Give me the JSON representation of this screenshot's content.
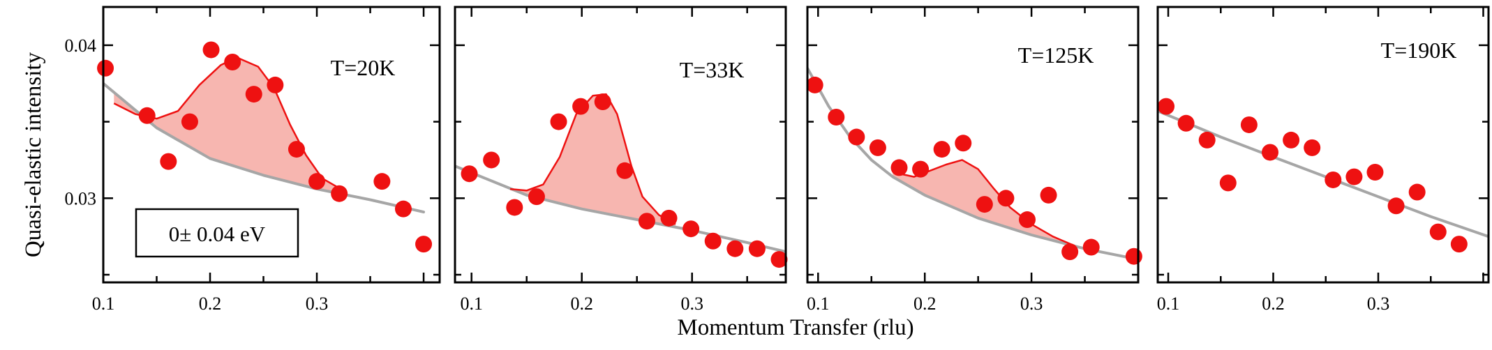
{
  "figure": {
    "ylabel": "Quasi-elastic intensity",
    "xlabel": "Momentum Transfer (rlu)",
    "energy_window": "0± 0.04 eV"
  },
  "colors": {
    "points": "#ee1111",
    "peak_line": "#ee1111",
    "peak_fill": "#f7b6b0",
    "background": "#a6a6a6",
    "frame": "#000000"
  },
  "chart_data": [
    {
      "type": "scatter",
      "panel_label": "T=20K",
      "xlim": [
        0.1,
        0.415
      ],
      "ylim": [
        0.0245,
        0.0425
      ],
      "xticks": [
        0.1,
        0.2,
        0.3
      ],
      "xtick_labels": [
        "0.1",
        "0.2",
        "0.3"
      ],
      "yticks": [
        0.03,
        0.04
      ],
      "ytick_labels": [
        "0.03",
        "0.04"
      ],
      "points": [
        [
          0.102,
          0.0385
        ],
        [
          0.141,
          0.0354
        ],
        [
          0.161,
          0.0324
        ],
        [
          0.181,
          0.035
        ],
        [
          0.201,
          0.0397
        ],
        [
          0.221,
          0.0389
        ],
        [
          0.241,
          0.0368
        ],
        [
          0.261,
          0.0374
        ],
        [
          0.281,
          0.0332
        ],
        [
          0.3,
          0.0311
        ],
        [
          0.321,
          0.0303
        ],
        [
          0.361,
          0.0311
        ],
        [
          0.381,
          0.0293
        ],
        [
          0.4,
          0.027
        ]
      ],
      "background_curve": [
        [
          0.1,
          0.0375
        ],
        [
          0.15,
          0.0346
        ],
        [
          0.2,
          0.0326
        ],
        [
          0.25,
          0.0315
        ],
        [
          0.3,
          0.0306
        ],
        [
          0.35,
          0.0299
        ],
        [
          0.4,
          0.0291
        ]
      ],
      "peak_curve": [
        [
          0.11,
          0.0362
        ],
        [
          0.13,
          0.0355
        ],
        [
          0.15,
          0.0352
        ],
        [
          0.17,
          0.0357
        ],
        [
          0.19,
          0.0374
        ],
        [
          0.21,
          0.0387
        ],
        [
          0.225,
          0.0392
        ],
        [
          0.245,
          0.0386
        ],
        [
          0.26,
          0.0372
        ],
        [
          0.275,
          0.0348
        ],
        [
          0.29,
          0.0328
        ],
        [
          0.305,
          0.0313
        ],
        [
          0.32,
          0.0307
        ]
      ]
    },
    {
      "type": "scatter",
      "panel_label": "T=33K",
      "xlim": [
        0.085,
        0.385
      ],
      "ylim": [
        0.0245,
        0.0425
      ],
      "xticks": [
        0.1,
        0.2,
        0.3
      ],
      "xtick_labels": [
        "0.1",
        "0.2",
        "0.3"
      ],
      "yticks": [
        0.03,
        0.04
      ],
      "ytick_labels": [],
      "points": [
        [
          0.098,
          0.0316
        ],
        [
          0.118,
          0.0325
        ],
        [
          0.139,
          0.0294
        ],
        [
          0.159,
          0.0301
        ],
        [
          0.179,
          0.035
        ],
        [
          0.199,
          0.036
        ],
        [
          0.219,
          0.0363
        ],
        [
          0.239,
          0.0318
        ],
        [
          0.259,
          0.0285
        ],
        [
          0.279,
          0.0287
        ],
        [
          0.299,
          0.028
        ],
        [
          0.319,
          0.0272
        ],
        [
          0.339,
          0.0267
        ],
        [
          0.359,
          0.0267
        ],
        [
          0.379,
          0.026
        ]
      ],
      "background_curve": [
        [
          0.085,
          0.0321
        ],
        [
          0.15,
          0.0302
        ],
        [
          0.2,
          0.0293
        ],
        [
          0.25,
          0.0286
        ],
        [
          0.3,
          0.0279
        ],
        [
          0.35,
          0.0271
        ],
        [
          0.385,
          0.0265
        ]
      ],
      "peak_curve": [
        [
          0.135,
          0.0306
        ],
        [
          0.15,
          0.0305
        ],
        [
          0.165,
          0.0309
        ],
        [
          0.18,
          0.0327
        ],
        [
          0.195,
          0.0355
        ],
        [
          0.21,
          0.0367
        ],
        [
          0.222,
          0.0368
        ],
        [
          0.232,
          0.0355
        ],
        [
          0.245,
          0.0321
        ],
        [
          0.255,
          0.0301
        ],
        [
          0.27,
          0.0289
        ],
        [
          0.285,
          0.0283
        ]
      ]
    },
    {
      "type": "scatter",
      "panel_label": "T=125K",
      "xlim": [
        0.09,
        0.4
      ],
      "ylim": [
        0.0245,
        0.0425
      ],
      "xticks": [
        0.1,
        0.2,
        0.3
      ],
      "xtick_labels": [
        "0.1",
        "0.2",
        "0.3"
      ],
      "yticks": [
        0.03,
        0.04
      ],
      "ytick_labels": [],
      "points": [
        [
          0.097,
          0.0374
        ],
        [
          0.117,
          0.0353
        ],
        [
          0.136,
          0.034
        ],
        [
          0.156,
          0.0333
        ],
        [
          0.176,
          0.032
        ],
        [
          0.196,
          0.0319
        ],
        [
          0.216,
          0.0332
        ],
        [
          0.236,
          0.0336
        ],
        [
          0.256,
          0.0296
        ],
        [
          0.276,
          0.03
        ],
        [
          0.296,
          0.0286
        ],
        [
          0.316,
          0.0302
        ],
        [
          0.336,
          0.0265
        ],
        [
          0.356,
          0.0268
        ],
        [
          0.396,
          0.0262
        ]
      ],
      "background_curve": [
        [
          0.09,
          0.0385
        ],
        [
          0.11,
          0.036
        ],
        [
          0.13,
          0.034
        ],
        [
          0.15,
          0.0325
        ],
        [
          0.17,
          0.0314
        ],
        [
          0.2,
          0.0302
        ],
        [
          0.25,
          0.0287
        ],
        [
          0.3,
          0.0276
        ],
        [
          0.35,
          0.0267
        ],
        [
          0.4,
          0.026
        ]
      ],
      "peak_curve": [
        [
          0.17,
          0.0317
        ],
        [
          0.19,
          0.0314
        ],
        [
          0.205,
          0.0318
        ],
        [
          0.22,
          0.0322
        ],
        [
          0.235,
          0.0325
        ],
        [
          0.25,
          0.0319
        ],
        [
          0.265,
          0.0306
        ],
        [
          0.28,
          0.0294
        ],
        [
          0.3,
          0.0283
        ],
        [
          0.32,
          0.0275
        ],
        [
          0.34,
          0.0269
        ]
      ]
    },
    {
      "type": "scatter",
      "panel_label": "T=190K",
      "xlim": [
        0.09,
        0.405
      ],
      "ylim": [
        0.0245,
        0.0425
      ],
      "xticks": [
        0.1,
        0.2,
        0.3
      ],
      "xtick_labels": [
        "0.1",
        "0.2",
        "0.3"
      ],
      "yticks": [
        0.03,
        0.04
      ],
      "ytick_labels": [],
      "points": [
        [
          0.098,
          0.036
        ],
        [
          0.117,
          0.0349
        ],
        [
          0.137,
          0.0338
        ],
        [
          0.157,
          0.031
        ],
        [
          0.177,
          0.0348
        ],
        [
          0.197,
          0.033
        ],
        [
          0.217,
          0.0338
        ],
        [
          0.237,
          0.0333
        ],
        [
          0.257,
          0.0312
        ],
        [
          0.277,
          0.0314
        ],
        [
          0.297,
          0.0317
        ],
        [
          0.317,
          0.0295
        ],
        [
          0.337,
          0.0304
        ],
        [
          0.357,
          0.0278
        ],
        [
          0.377,
          0.027
        ]
      ],
      "background_curve": [
        [
          0.09,
          0.0357
        ],
        [
          0.15,
          0.034
        ],
        [
          0.2,
          0.0327
        ],
        [
          0.25,
          0.0314
        ],
        [
          0.3,
          0.0301
        ],
        [
          0.35,
          0.0288
        ],
        [
          0.405,
          0.0275
        ]
      ]
    }
  ]
}
